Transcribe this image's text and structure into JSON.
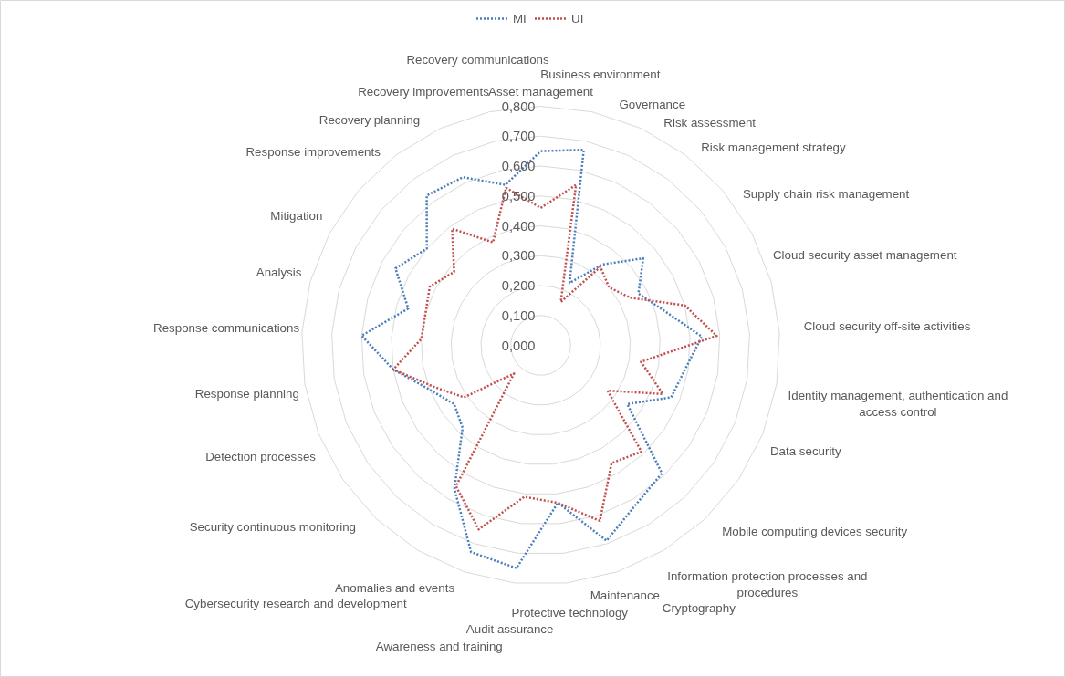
{
  "chart_data": {
    "type": "radar",
    "categories": [
      "Asset management",
      "Business environment",
      "Governance",
      "Risk assessment",
      "Risk management strategy",
      "Supply chain risk management",
      "Cloud security asset management",
      "Cloud security off-site activities",
      "Identity management, authentication and access control",
      "Data security",
      "Mobile computing devices security",
      "Information protection processes and procedures",
      "Cryptography",
      "Maintenance",
      "Protective technology",
      "Audit assurance",
      "Awareness and training",
      "Anomalies and events",
      "Cybersecurity research and development",
      "Security continuous monitoring",
      "Detection processes",
      "Response planning",
      "Response communications",
      "Analysis",
      "Mitigation",
      "Response improvements",
      "Recovery planning",
      "Recovery improvements",
      "Recovery communications"
    ],
    "series": [
      {
        "name": "MI",
        "color": "#4a7ebb",
        "values": [
          0.65,
          0.67,
          0.23,
          0.34,
          0.45,
          0.37,
          0.43,
          0.54,
          0.49,
          0.47,
          0.35,
          0.59,
          0.62,
          0.69,
          0.53,
          0.75,
          0.73,
          0.56,
          0.38,
          0.35,
          0.4,
          0.5,
          0.6,
          0.46,
          0.55,
          0.5,
          0.63,
          0.62,
          0.55
        ]
      },
      {
        "name": "UI",
        "color": "#c0504d",
        "values": [
          0.46,
          0.55,
          0.16,
          0.33,
          0.3,
          0.34,
          0.5,
          0.59,
          0.34,
          0.44,
          0.27,
          0.49,
          0.46,
          0.62,
          0.53,
          0.51,
          0.65,
          0.55,
          0.13,
          0.31,
          0.38,
          0.5,
          0.4,
          0.4,
          0.42,
          0.38,
          0.49,
          0.38,
          0.54
        ]
      }
    ],
    "ylim": [
      0,
      0.8
    ],
    "yticks": [
      {
        "value": 0,
        "label": "0,000"
      },
      {
        "value": 0.1,
        "label": "0,100"
      },
      {
        "value": 0.2,
        "label": "0,200"
      },
      {
        "value": 0.3,
        "label": "0,300"
      },
      {
        "value": 0.4,
        "label": "0,400"
      },
      {
        "value": 0.5,
        "label": "0,500"
      },
      {
        "value": 0.6,
        "label": "0,600"
      },
      {
        "value": 0.7,
        "label": "0,700"
      },
      {
        "value": 0.8,
        "label": "0,800"
      }
    ],
    "grid": true,
    "legend": "top",
    "marker": "none",
    "line_style": "dotted"
  }
}
